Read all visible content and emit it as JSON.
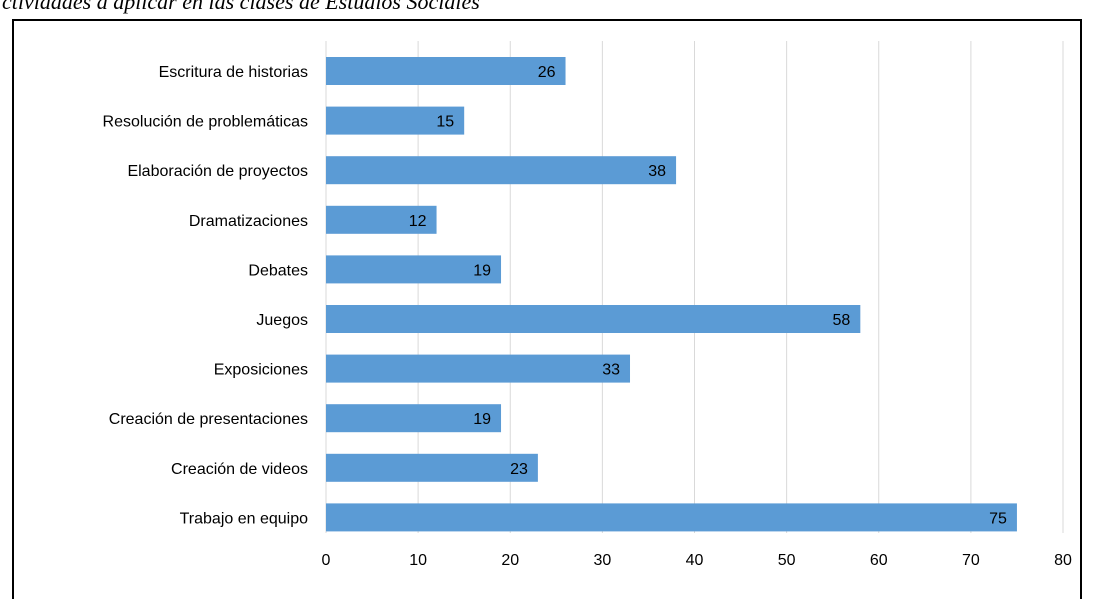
{
  "caption": "ctividades a aplicar en las clases de Estudios Sociales",
  "chart_data": {
    "type": "bar",
    "orientation": "horizontal",
    "categories": [
      "Escritura de historias",
      "Resolución de problemáticas",
      "Elaboración de proyectos",
      "Dramatizaciones",
      "Debates",
      "Juegos",
      "Exposiciones",
      "Creación de presentaciones",
      "Creación de videos",
      "Trabajo en equipo"
    ],
    "values": [
      26,
      15,
      38,
      12,
      19,
      58,
      33,
      19,
      23,
      75
    ],
    "xlim": [
      0,
      80
    ],
    "xticks": [
      0,
      10,
      20,
      30,
      40,
      50,
      60,
      70,
      80
    ],
    "grid": "vertical",
    "data_labels": "inside-end",
    "bar_color": "#5b9bd5",
    "grid_color": "#d9d9d9"
  }
}
